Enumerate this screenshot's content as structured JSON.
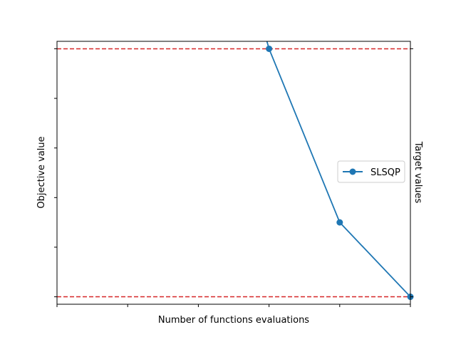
{
  "chart_data": {
    "type": "line",
    "title": "",
    "xlabel": "Number of functions evaluations",
    "ylabel": "Objective value",
    "y2label": "Target values",
    "xlim": [
      0,
      5
    ],
    "ylim": [
      -0.03,
      1.03
    ],
    "x_ticks": [
      0,
      1,
      2,
      3,
      4,
      5
    ],
    "y_ticks": [
      0,
      0.2,
      0.4,
      0.6,
      0.8,
      1.0
    ],
    "y2_ticks": [
      0,
      1.0
    ],
    "tick_labels_shown": false,
    "grid": false,
    "legend_position": "center-right",
    "series": [
      {
        "name": "SLSQP",
        "color": "#1f77b4",
        "marker": "circle",
        "x": [
          2.97,
          3,
          4,
          5
        ],
        "y": [
          1.03,
          1.0,
          0.3,
          0.0
        ],
        "marker_indices": [
          1,
          2,
          3
        ]
      }
    ],
    "reference_lines": [
      {
        "y": 1.0,
        "color": "#d62728",
        "style": "dashed"
      },
      {
        "y": 0.0,
        "color": "#d62728",
        "style": "dashed"
      }
    ]
  }
}
